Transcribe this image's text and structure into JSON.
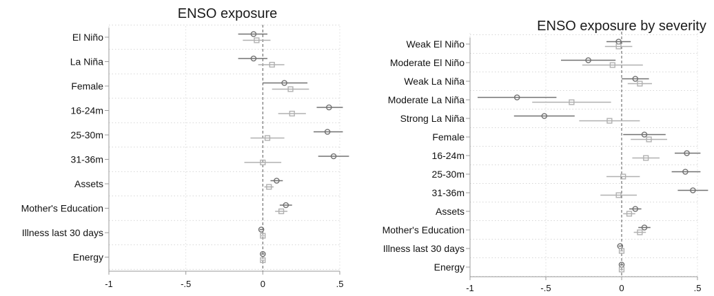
{
  "chart_data": [
    {
      "type": "coefficient-plot",
      "title": "ENSO exposure",
      "xlim": [
        -1,
        0.5
      ],
      "xticks": [
        -1,
        -0.5,
        0,
        0.5
      ],
      "xtick_labels": [
        "-1",
        "-.5",
        "0",
        ".5"
      ],
      "grid": true,
      "series_colors": [
        "#707070",
        "#b0b0b0"
      ],
      "markers": [
        "circle",
        "square"
      ],
      "categories": [
        "El Niño",
        "La Niña",
        "Female",
        "16-24m",
        "25-30m",
        "31-36m",
        "Assets",
        "Mother's Education",
        "Illness last 30 days",
        "Energy"
      ],
      "series": [
        {
          "estimates": [
            -0.06,
            -0.06,
            0.14,
            0.43,
            0.42,
            0.46,
            0.09,
            0.15,
            -0.01,
            0.0
          ],
          "ci_low": [
            -0.16,
            -0.16,
            0.0,
            0.35,
            0.33,
            0.36,
            0.05,
            0.11,
            -0.02,
            -0.01
          ],
          "ci_high": [
            0.03,
            0.03,
            0.29,
            0.52,
            0.52,
            0.56,
            0.13,
            0.19,
            0.0,
            0.01
          ]
        },
        {
          "estimates": [
            -0.04,
            0.06,
            0.18,
            0.19,
            0.03,
            0.0,
            0.04,
            0.12,
            0.0,
            0.0
          ],
          "ci_low": [
            -0.13,
            -0.03,
            0.06,
            0.1,
            -0.08,
            -0.12,
            0.01,
            0.08,
            -0.01,
            -0.01
          ],
          "ci_high": [
            0.05,
            0.14,
            0.3,
            0.28,
            0.14,
            0.12,
            0.07,
            0.16,
            0.01,
            0.01
          ]
        }
      ]
    },
    {
      "type": "coefficient-plot",
      "title": "ENSO exposure by severity",
      "xlim": [
        -1,
        0.5
      ],
      "xticks": [
        -1,
        -0.5,
        0,
        0.5
      ],
      "xtick_labels": [
        "-1",
        "-.5",
        "0",
        ".5"
      ],
      "grid": true,
      "series_colors": [
        "#707070",
        "#b0b0b0"
      ],
      "markers": [
        "circle",
        "square"
      ],
      "categories": [
        "Weak El Niño",
        "Moderate El Niño",
        "Weak La Niña",
        "Moderate La Niña",
        "Strong La Niña",
        "Female",
        "16-24m",
        "25-30m",
        "31-36m",
        "Assets",
        "Mother's Education",
        "Illness last 30 days",
        "Energy"
      ],
      "series": [
        {
          "estimates": [
            -0.02,
            -0.22,
            0.09,
            -0.69,
            -0.51,
            0.15,
            0.43,
            0.42,
            0.47,
            0.09,
            0.15,
            -0.01,
            0.0
          ],
          "ci_low": [
            -0.1,
            -0.4,
            0.0,
            -0.95,
            -0.71,
            0.01,
            0.35,
            0.33,
            0.37,
            0.05,
            0.11,
            -0.02,
            -0.01
          ],
          "ci_high": [
            0.06,
            -0.04,
            0.18,
            -0.43,
            -0.31,
            0.29,
            0.52,
            0.52,
            0.57,
            0.13,
            0.19,
            0.0,
            0.01
          ]
        },
        {
          "estimates": [
            -0.02,
            -0.06,
            0.12,
            -0.33,
            -0.08,
            0.18,
            0.16,
            0.01,
            -0.02,
            0.05,
            0.12,
            0.0,
            0.0
          ],
          "ci_low": [
            -0.11,
            -0.26,
            0.04,
            -0.59,
            -0.28,
            0.06,
            0.07,
            -0.1,
            -0.14,
            0.01,
            0.08,
            -0.01,
            -0.01
          ],
          "ci_high": [
            0.07,
            0.14,
            0.2,
            -0.07,
            0.12,
            0.3,
            0.25,
            0.12,
            0.1,
            0.09,
            0.16,
            0.01,
            0.01
          ]
        }
      ]
    }
  ]
}
